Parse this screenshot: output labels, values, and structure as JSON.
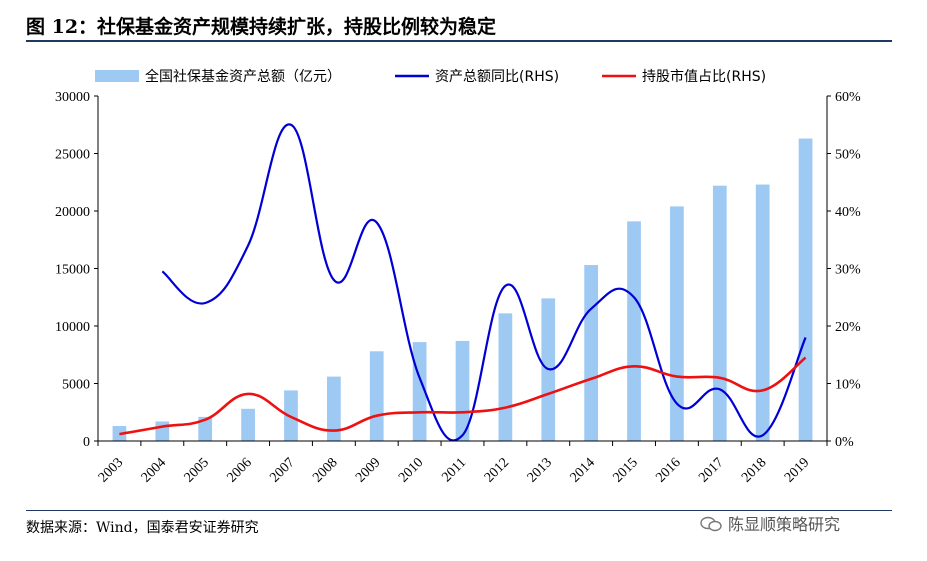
{
  "title": "图 12：社保基金资产规模持续扩张，持股比例较为稳定",
  "source": "数据来源：Wind，国泰君安证券研究",
  "watermark": "陈显顺策略研究",
  "colors": {
    "bar": "#9dc9f3",
    "growth_line": "#0000d6",
    "share_line": "#ee1111",
    "rule": "#1f3864"
  },
  "chart_data": {
    "type": "bar",
    "categories": [
      "2003",
      "2004",
      "2005",
      "2006",
      "2007",
      "2008",
      "2009",
      "2010",
      "2011",
      "2012",
      "2013",
      "2014",
      "2015",
      "2016",
      "2017",
      "2018",
      "2019"
    ],
    "y_left": {
      "ylim": [
        0,
        30000
      ],
      "ticks": [
        "0",
        "5000",
        "10000",
        "15000",
        "20000",
        "25000",
        "30000"
      ]
    },
    "y_right": {
      "ylim": [
        0,
        60
      ],
      "ticks": [
        "0%",
        "10%",
        "20%",
        "30%",
        "40%",
        "50%",
        "60%"
      ]
    },
    "legend_position": "top",
    "series": [
      {
        "name": "全国社保基金资产总额（亿元）",
        "type": "bar",
        "axis": "left",
        "values": [
          1300,
          1700,
          2100,
          2800,
          4400,
          5600,
          7800,
          8600,
          8700,
          11100,
          12400,
          15300,
          19100,
          20400,
          22200,
          22300,
          26300
        ]
      },
      {
        "name": "资产总额同比(RHS)",
        "type": "line",
        "axis": "right",
        "values": [
          null,
          29.5,
          24,
          34,
          55,
          28,
          38,
          11,
          1,
          27,
          12.5,
          23,
          25,
          6.5,
          9,
          1,
          18
        ]
      },
      {
        "name": "持股市值占比(RHS)",
        "type": "line",
        "axis": "right",
        "values": [
          1.2,
          2.5,
          3.7,
          8.2,
          4.2,
          1.8,
          4.4,
          5,
          5,
          5.8,
          8.2,
          10.8,
          13,
          11.2,
          11,
          8.8,
          14.5
        ]
      }
    ]
  }
}
